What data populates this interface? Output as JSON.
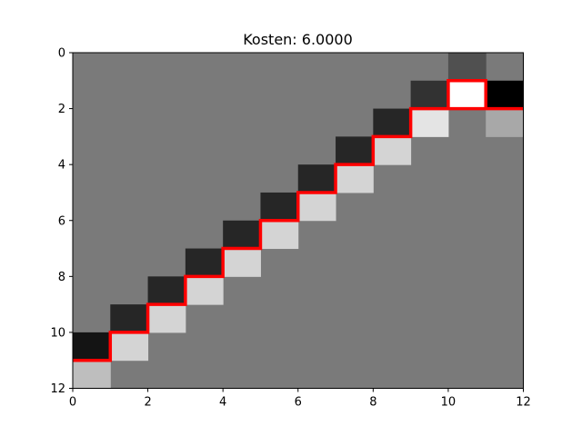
{
  "chart_data": {
    "type": "heatmap",
    "title": "Kosten: 6.0000",
    "xlabel": "",
    "ylabel": "",
    "xlim": [
      0,
      12
    ],
    "ylim": [
      12,
      0
    ],
    "xticks": [
      "0",
      "2",
      "4",
      "6",
      "8",
      "10",
      "12"
    ],
    "yticks": [
      "0",
      "2",
      "4",
      "6",
      "8",
      "10",
      "12"
    ],
    "grid": false,
    "colormap": "gray",
    "background_gray": 122,
    "cells": [
      {
        "row": 0,
        "col": 10,
        "gray": 80
      },
      {
        "row": 1,
        "col": 9,
        "gray": 50
      },
      {
        "row": 1,
        "col": 10,
        "gray": 255
      },
      {
        "row": 1,
        "col": 11,
        "gray": 0
      },
      {
        "row": 2,
        "col": 8,
        "gray": 38
      },
      {
        "row": 2,
        "col": 9,
        "gray": 228
      },
      {
        "row": 2,
        "col": 11,
        "gray": 168
      },
      {
        "row": 3,
        "col": 7,
        "gray": 38
      },
      {
        "row": 3,
        "col": 8,
        "gray": 212
      },
      {
        "row": 4,
        "col": 6,
        "gray": 38
      },
      {
        "row": 4,
        "col": 7,
        "gray": 212
      },
      {
        "row": 5,
        "col": 5,
        "gray": 38
      },
      {
        "row": 5,
        "col": 6,
        "gray": 212
      },
      {
        "row": 6,
        "col": 4,
        "gray": 38
      },
      {
        "row": 6,
        "col": 5,
        "gray": 212
      },
      {
        "row": 7,
        "col": 3,
        "gray": 38
      },
      {
        "row": 7,
        "col": 4,
        "gray": 212
      },
      {
        "row": 8,
        "col": 2,
        "gray": 38
      },
      {
        "row": 8,
        "col": 3,
        "gray": 212
      },
      {
        "row": 9,
        "col": 1,
        "gray": 38
      },
      {
        "row": 9,
        "col": 2,
        "gray": 212
      },
      {
        "row": 10,
        "col": 0,
        "gray": 20
      },
      {
        "row": 10,
        "col": 1,
        "gray": 212
      },
      {
        "row": 11,
        "col": 0,
        "gray": 190
      }
    ],
    "path": {
      "color": "#ff0000",
      "points": [
        [
          0,
          11
        ],
        [
          1,
          11
        ],
        [
          1,
          10
        ],
        [
          2,
          10
        ],
        [
          2,
          9
        ],
        [
          3,
          9
        ],
        [
          3,
          8
        ],
        [
          4,
          8
        ],
        [
          4,
          7
        ],
        [
          5,
          7
        ],
        [
          5,
          6
        ],
        [
          6,
          6
        ],
        [
          6,
          5
        ],
        [
          7,
          5
        ],
        [
          7,
          4
        ],
        [
          8,
          4
        ],
        [
          8,
          3
        ],
        [
          9,
          3
        ],
        [
          9,
          2
        ],
        [
          10,
          2
        ],
        [
          10,
          1
        ],
        [
          11,
          1
        ],
        [
          11,
          2
        ],
        [
          10,
          2
        ],
        [
          11,
          2
        ],
        [
          12,
          2
        ]
      ]
    }
  }
}
